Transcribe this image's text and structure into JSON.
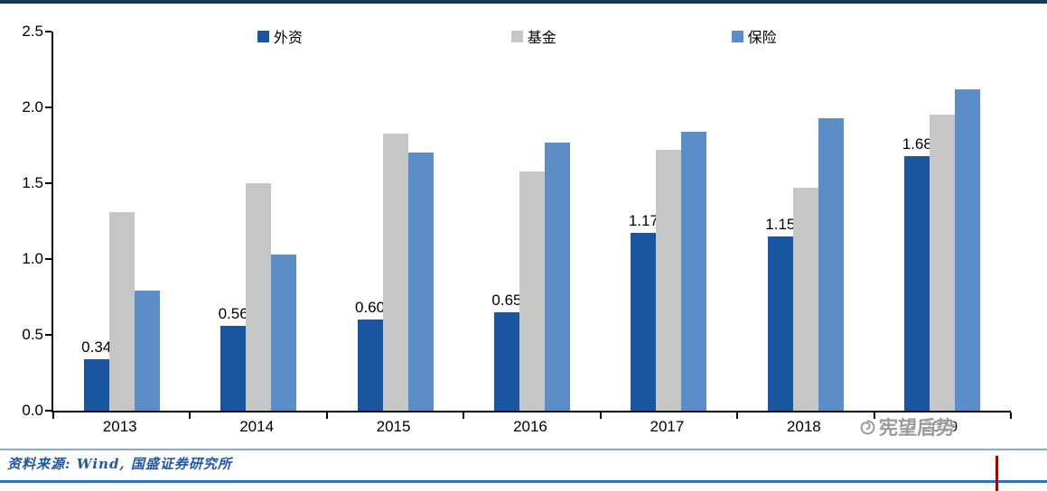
{
  "chart_data": {
    "type": "bar",
    "title": "",
    "categories": [
      "2013",
      "2014",
      "2015",
      "2016",
      "2017",
      "2018",
      "2019"
    ],
    "series": [
      {
        "name": "外资",
        "color": "#1A56A0",
        "values": [
          0.34,
          0.56,
          0.6,
          0.65,
          1.17,
          1.15,
          1.68
        ],
        "labels": [
          "0.34",
          "0.56",
          "0.60",
          "0.65",
          "1.17",
          "1.15",
          "1.68"
        ]
      },
      {
        "name": "基金",
        "color": "#C6C6C6",
        "values": [
          1.31,
          1.5,
          1.83,
          1.58,
          1.72,
          1.47,
          1.95
        ]
      },
      {
        "name": "保险",
        "color": "#5B8DC9",
        "values": [
          0.79,
          1.03,
          1.7,
          1.77,
          1.84,
          1.93,
          2.12
        ]
      }
    ],
    "ylim": [
      0,
      2.5
    ],
    "yticks": [
      "2.5",
      "2.0",
      "1.5",
      "1.0",
      "0.5",
      "0.0"
    ],
    "grid": false,
    "legend_position": "top"
  },
  "source": {
    "text": "资料来源: Wind, 国盛证券研究所"
  },
  "watermark": {
    "text": "宪望后势"
  },
  "colors": {
    "top_line": "#16365C",
    "divider": "#8EA9C6",
    "bottom_line": "#2E74B5",
    "accent_red": "#B00000",
    "source_text": "#2157A5",
    "axis": "#000000"
  }
}
